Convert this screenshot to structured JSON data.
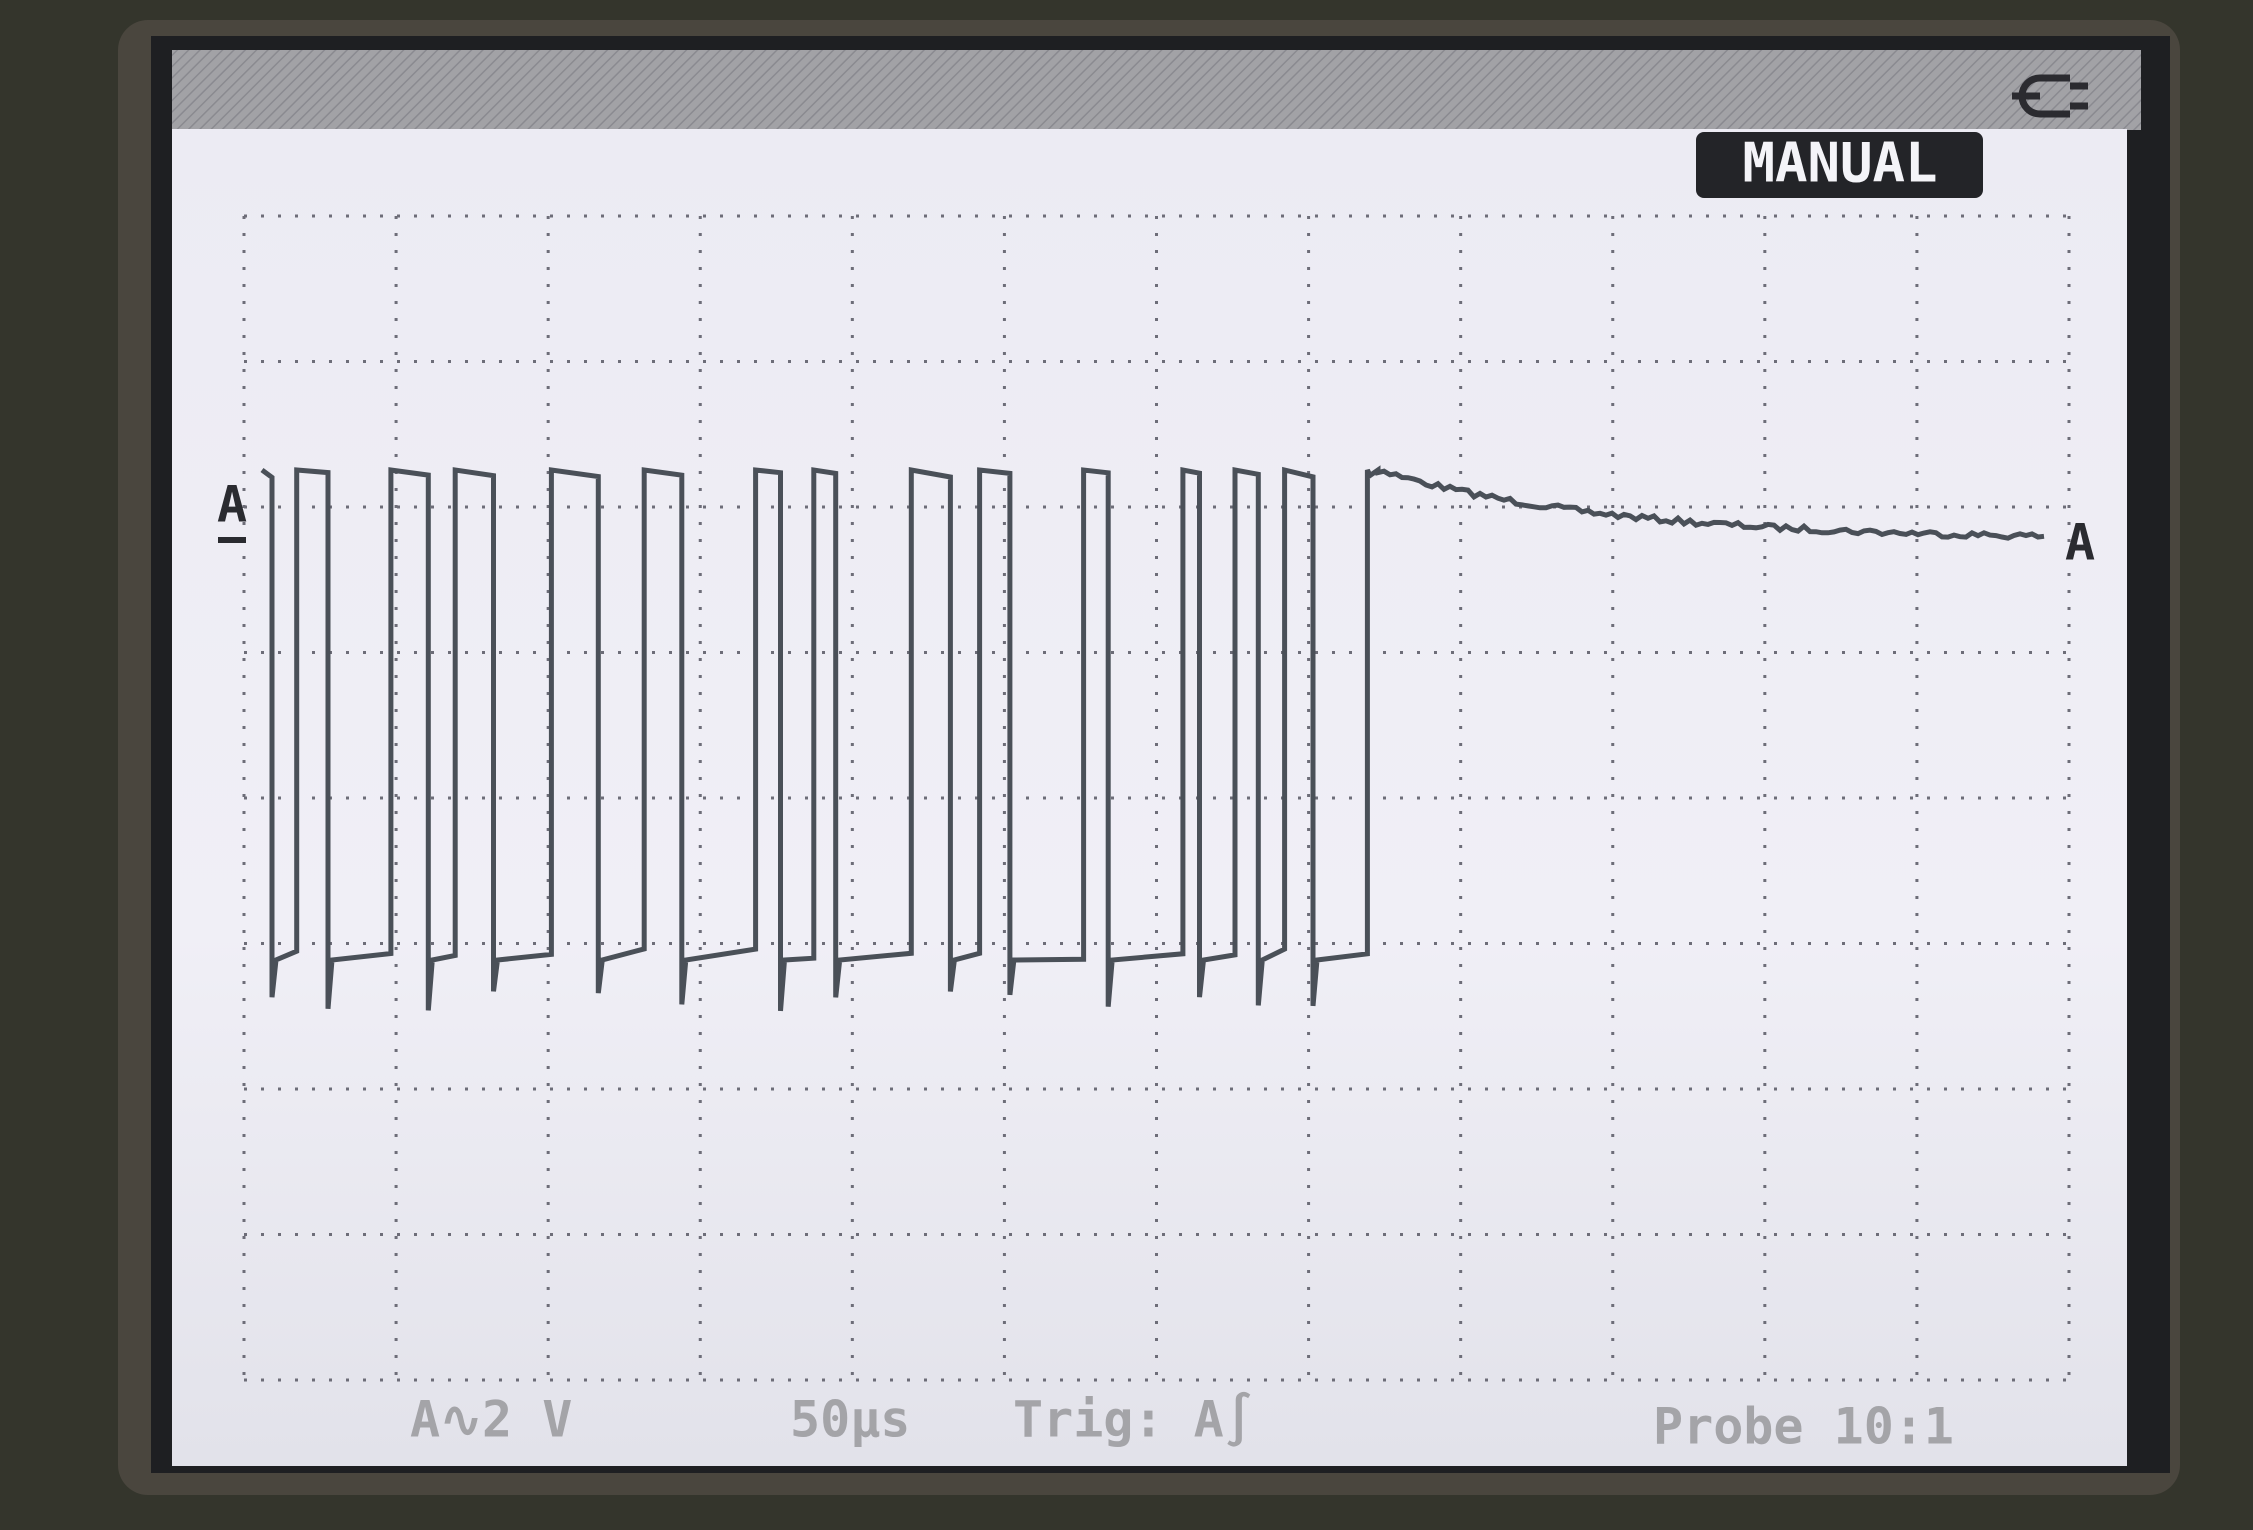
{
  "header": {
    "mode": "MANUAL"
  },
  "markers": {
    "left": "A",
    "right": "A"
  },
  "footer": {
    "channel": "A∿2 V",
    "timebase": "50µs",
    "trigger": "Trig: A∫",
    "probe": "Probe 10:1"
  }
}
